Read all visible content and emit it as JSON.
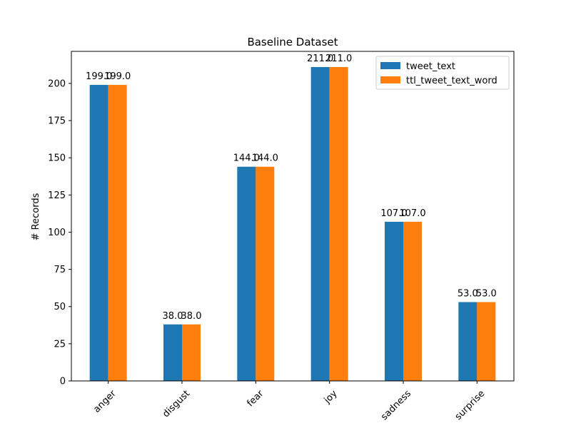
{
  "chart_data": {
    "type": "bar",
    "title": "Baseline Dataset",
    "xlabel": "",
    "ylabel": "# Records",
    "categories": [
      "anger",
      "disgust",
      "fear",
      "joy",
      "sadness",
      "surprise"
    ],
    "series": [
      {
        "name": "tweet_text",
        "values": [
          199,
          38,
          144,
          211,
          107,
          53
        ],
        "labels": [
          "199.0",
          "38.0",
          "144.0",
          "211.0",
          "107.0",
          "53.0"
        ],
        "color": "#1f77b4"
      },
      {
        "name": "ttl_tweet_text_word",
        "values": [
          199,
          38,
          144,
          211,
          107,
          53
        ],
        "labels": [
          "199.0",
          "38.0",
          "144.0",
          "211.0",
          "107.0",
          "53.0"
        ],
        "color": "#ff7f0e"
      }
    ],
    "yticks": [
      0,
      25,
      50,
      75,
      100,
      125,
      150,
      175,
      200
    ],
    "ylim": [
      0,
      221.55
    ],
    "grid": false,
    "legend_position": "top-right",
    "x_tick_rotation": -45
  }
}
